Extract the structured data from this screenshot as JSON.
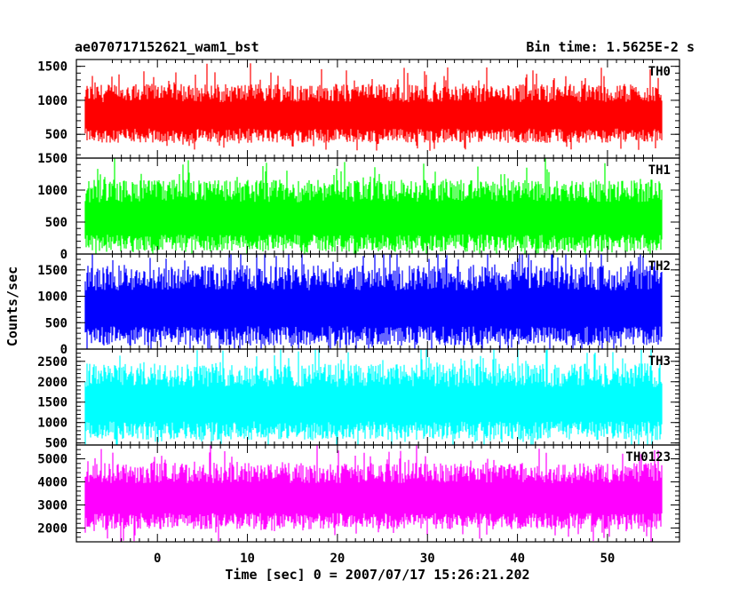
{
  "header": {
    "title": "ae070717152621_wam1_bst",
    "bin_time": "Bin time: 1.5625E-2 s"
  },
  "chart_data": {
    "type": "line",
    "title": "ae070717152621_wam1_bst",
    "subtitle": "Bin time: 1.5625E-2 s",
    "xlabel": "Time [sec] 0 = 2007/07/17 15:26:21.202",
    "ylabel": "Counts/sec",
    "xlim": [
      -9,
      58
    ],
    "x_ticks": [
      0,
      10,
      20,
      30,
      40,
      50
    ],
    "x_data_range": [
      -8,
      56
    ],
    "panels": [
      {
        "name": "TH0",
        "color": "#ff0000",
        "ylim": [
          150,
          1600
        ],
        "y_ticks": [
          500,
          1000,
          1500
        ],
        "typical_low": 480,
        "typical_high": 1080
      },
      {
        "name": "TH1",
        "color": "#00ff00",
        "ylim": [
          0,
          1500
        ],
        "y_ticks": [
          0,
          500,
          1000,
          1500
        ],
        "typical_low": 170,
        "typical_high": 950
      },
      {
        "name": "TH2",
        "color": "#0000ff",
        "ylim": [
          0,
          1800
        ],
        "y_ticks": [
          0,
          500,
          1000,
          1500
        ],
        "typical_low": 250,
        "typical_high": 1300
      },
      {
        "name": "TH3",
        "color": "#00ffff",
        "ylim": [
          450,
          2800
        ],
        "y_ticks": [
          500,
          1000,
          1500,
          2000,
          2500
        ],
        "typical_low": 800,
        "typical_high": 2100
      },
      {
        "name": "TH0123",
        "color": "#ff00ff",
        "ylim": [
          1400,
          5600
        ],
        "y_ticks": [
          2000,
          3000,
          4000,
          5000
        ],
        "typical_low": 2300,
        "typical_high": 4300
      }
    ]
  }
}
